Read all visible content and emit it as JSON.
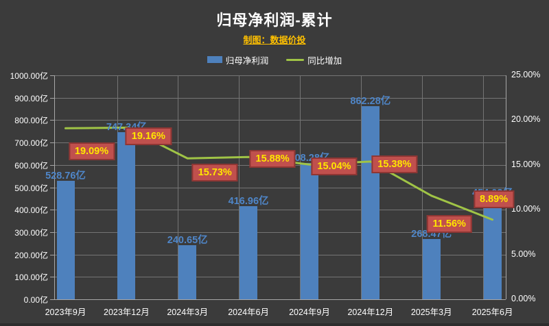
{
  "header": {
    "title": "归母净利润-累计",
    "subtitle": "制图：数据价投"
  },
  "colors": {
    "background": "#3b3b3b",
    "bar": "#4e81bd",
    "line": "#a0c446",
    "value_label": "#4f86c8",
    "pct_box_fill": "#c0504d",
    "pct_box_border": "#8e3634",
    "pct_text": "#ffe600",
    "subtitle": "#ffc000",
    "gridline": "#757575",
    "axis": "#a8a8a8",
    "text": "#ffffff"
  },
  "chart_data": {
    "type": "bar",
    "title": "归母净利润-累计",
    "subtitle": "制图：数据价投",
    "legend_position": "top",
    "grid": true,
    "categories": [
      "2023年9月",
      "2023年12月",
      "2024年3月",
      "2024年6月",
      "2024年9月",
      "2024年12月",
      "2025年3月",
      "2025年6月"
    ],
    "series": [
      {
        "name": "归母净利润",
        "type": "bar",
        "axis": "left",
        "unit": "亿",
        "values": [
          528.76,
          747.34,
          240.65,
          416.96,
          608.28,
          862.28,
          268.47,
          454.03
        ],
        "labels": [
          "528.76亿",
          "747.34亿",
          "240.65亿",
          "416.96亿",
          "608.28亿",
          "862.28亿",
          "268.47亿",
          "454.03亿"
        ]
      },
      {
        "name": "同比增加",
        "type": "line",
        "axis": "right",
        "unit": "%",
        "values": [
          19.09,
          19.16,
          15.73,
          15.88,
          15.04,
          15.38,
          11.56,
          8.89
        ],
        "labels": [
          "19.09%",
          "19.16%",
          "15.73%",
          "15.88%",
          "15.04%",
          "15.38%",
          "11.56%",
          "8.89%"
        ]
      }
    ],
    "left_axis": {
      "min": 0,
      "max": 1000,
      "ticks_top_down": [
        "1000.00亿",
        "900.00亿",
        "800.00亿",
        "700.00亿",
        "600.00亿",
        "500.00亿",
        "400.00亿",
        "300.00亿",
        "200.00亿",
        "100.00亿",
        "0.00亿"
      ]
    },
    "right_axis": {
      "min": 0,
      "max": 25,
      "ticks_top_down": [
        "25.00%",
        "20.00%",
        "15.00%",
        "10.00%",
        "5.00%",
        "0.00%"
      ]
    }
  }
}
